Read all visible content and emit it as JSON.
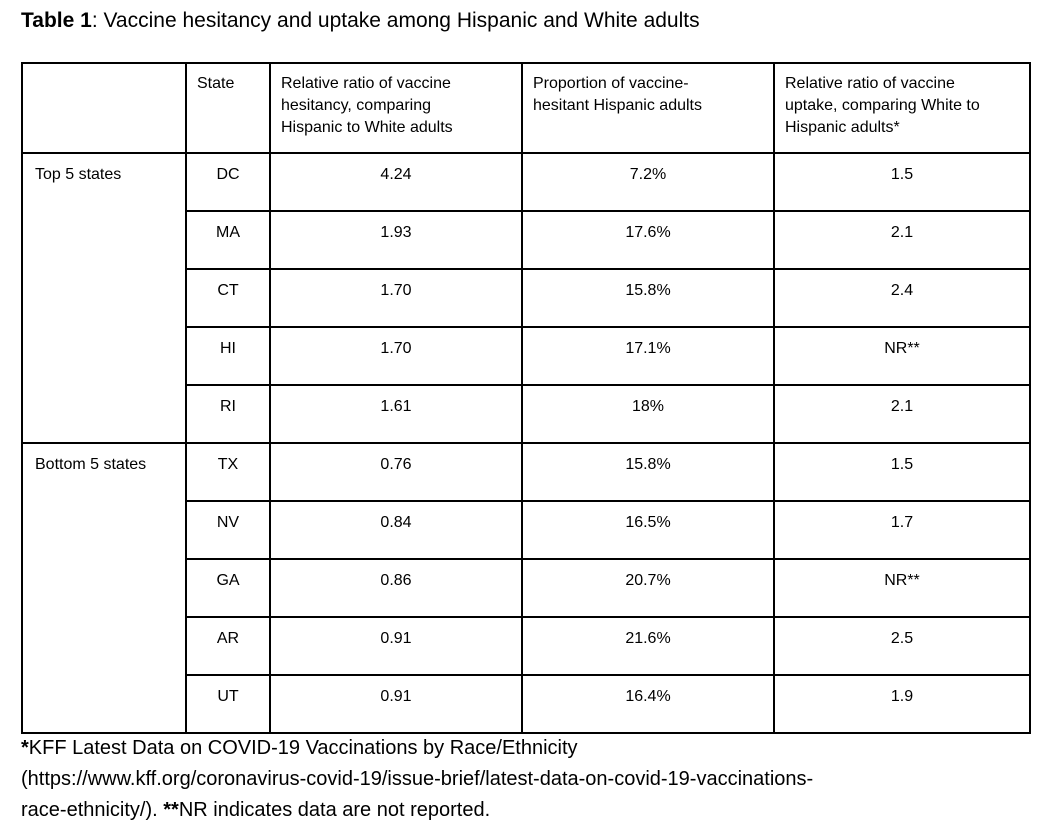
{
  "title": {
    "bold": "Table 1",
    "rest": ": Vaccine hesitancy and uptake among Hispanic and White adults"
  },
  "table": {
    "headers": [
      "",
      "State",
      "Relative ratio of vaccine hesitancy, comparing Hispanic to White adults",
      "Proportion of vaccine-hesitant Hispanic adults",
      "Relative ratio of vaccine uptake, comparing White to Hispanic adults*"
    ],
    "groups": [
      {
        "label": "Top 5 states",
        "rows": [
          {
            "state": "DC",
            "hesitancy_ratio": "4.24",
            "hesitant_proportion": "7.2%",
            "uptake_ratio": "1.5"
          },
          {
            "state": "MA",
            "hesitancy_ratio": "1.93",
            "hesitant_proportion": "17.6%",
            "uptake_ratio": "2.1"
          },
          {
            "state": "CT",
            "hesitancy_ratio": "1.70",
            "hesitant_proportion": "15.8%",
            "uptake_ratio": "2.4"
          },
          {
            "state": "HI",
            "hesitancy_ratio": "1.70",
            "hesitant_proportion": "17.1%",
            "uptake_ratio": "NR**"
          },
          {
            "state": "RI",
            "hesitancy_ratio": "1.61",
            "hesitant_proportion": "18%",
            "uptake_ratio": "2.1"
          }
        ]
      },
      {
        "label": "Bottom 5 states",
        "rows": [
          {
            "state": "TX",
            "hesitancy_ratio": "0.76",
            "hesitant_proportion": "15.8%",
            "uptake_ratio": "1.5"
          },
          {
            "state": "NV",
            "hesitancy_ratio": "0.84",
            "hesitant_proportion": "16.5%",
            "uptake_ratio": "1.7"
          },
          {
            "state": "GA",
            "hesitancy_ratio": "0.86",
            "hesitant_proportion": "20.7%",
            "uptake_ratio": "NR**"
          },
          {
            "state": "AR",
            "hesitancy_ratio": "0.91",
            "hesitant_proportion": "21.6%",
            "uptake_ratio": "2.5"
          },
          {
            "state": "UT",
            "hesitancy_ratio": "0.91",
            "hesitant_proportion": "16.4%",
            "uptake_ratio": "1.9"
          }
        ]
      }
    ]
  },
  "footnote": {
    "line1_asterisk": "*",
    "line1_text": "KFF Latest Data on COVID-19 Vaccinations by Race/Ethnicity",
    "line2_text": "(https://www.kff.org/coronavirus-covid-19/issue-brief/latest-data-on-covid-19-vaccinations-",
    "line3_prefix": "race-ethnicity/). ",
    "line3_asterisks": "**",
    "line3_text": "NR indicates data are not reported."
  }
}
